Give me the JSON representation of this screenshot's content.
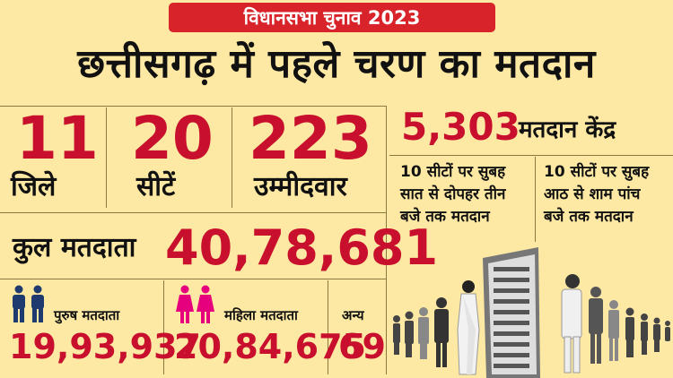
{
  "badge": "विधानसभा चुनाव 2023",
  "headline": "छत्तीसगढ़ में पहले चरण का मतदान",
  "stats": [
    {
      "value": "11",
      "label": "जिले"
    },
    {
      "value": "20",
      "label": "सीटें"
    },
    {
      "value": "223",
      "label": "उम्मीदवार"
    }
  ],
  "total": {
    "label": "कुल मतदाता",
    "value": "40,78,681"
  },
  "male": {
    "label": "पुरुष मतदाता",
    "value": "19,93,937"
  },
  "female": {
    "label": "महिला मतदाता",
    "value": "20,84,675"
  },
  "other": {
    "label": "अन्य",
    "value": "69"
  },
  "centers": {
    "value": "5,303",
    "label": "मतदान केंद्र"
  },
  "schedule": [
    {
      "line1": "10 सीटों पर सुबह",
      "line2": "सात से दोपहर तीन",
      "line3": "बजे तक मतदान"
    },
    {
      "line1": "10 सीटों पर सुबह",
      "line2": "आठ से शाम पांच",
      "line3": "बजे तक मतदान"
    }
  ],
  "colors": {
    "background": "#fde9a3",
    "accent": "#c8102e",
    "badge": "#d8232a",
    "male_icon": "#1f3a6e",
    "female_icon": "#e6007e"
  }
}
